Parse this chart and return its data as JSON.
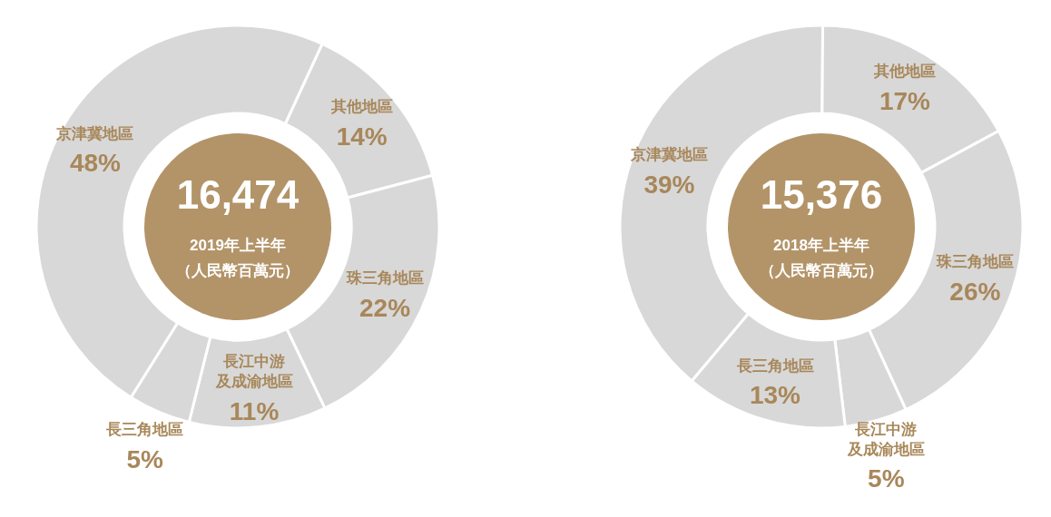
{
  "chart_data": [
    {
      "type": "donut",
      "title": "16,474",
      "subtitle": "2019年上半年",
      "annotations": [
        "（人民幣百萬元）"
      ],
      "categories": [
        "京津冀地區",
        "其他地區",
        "珠三角地區",
        "長江中游及成渝地區",
        "長三角地區"
      ],
      "values": [
        48,
        14,
        22,
        11,
        5
      ],
      "value_labels": [
        "48%",
        "14%",
        "22%",
        "11%",
        "5%"
      ],
      "colors": [
        "#d8d8d8",
        "#d8d8d8",
        "#d8d8d8",
        "#d8d8d8",
        "#d8d8d8"
      ]
    },
    {
      "type": "donut",
      "title": "15,376",
      "subtitle": "2018年上半年",
      "annotations": [
        "（人民幣百萬元）"
      ],
      "categories": [
        "京津冀地區",
        "其他地區",
        "珠三角地區",
        "長江中游及成渝地區",
        "長三角地區"
      ],
      "values": [
        39,
        17,
        26,
        5,
        13
      ],
      "value_labels": [
        "39%",
        "17%",
        "26%",
        "5%",
        "13%"
      ],
      "colors": [
        "#d8d8d8",
        "#d8d8d8",
        "#d8d8d8",
        "#d8d8d8",
        "#d8d8d8"
      ]
    }
  ]
}
